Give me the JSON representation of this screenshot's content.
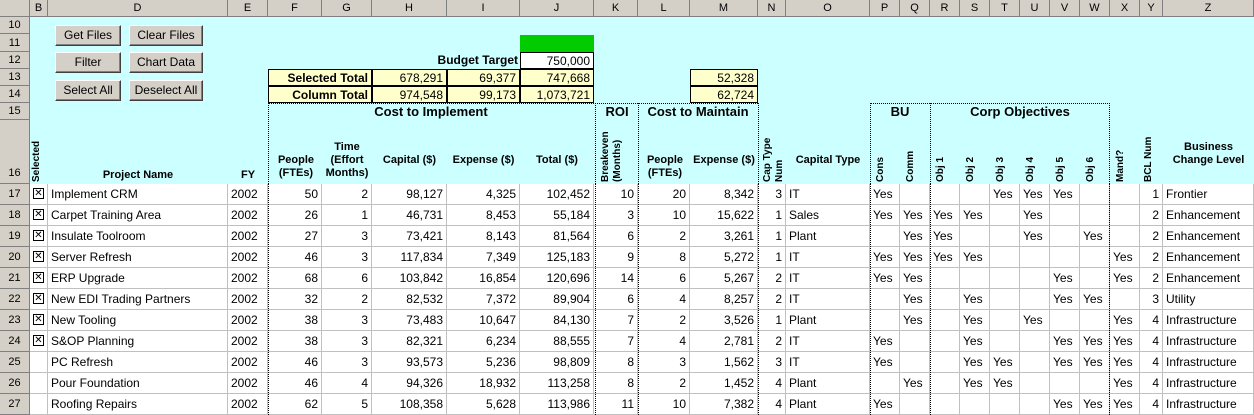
{
  "col_headers": [
    "B",
    "D",
    "E",
    "F",
    "G",
    "H",
    "I",
    "J",
    "K",
    "L",
    "M",
    "N",
    "O",
    "P",
    "Q",
    "R",
    "S",
    "T",
    "U",
    "V",
    "W",
    "X",
    "Y",
    "Z"
  ],
  "row_headers": [
    "10",
    "11",
    "12",
    "13",
    "14",
    "15",
    "16",
    "17",
    "18",
    "19",
    "20",
    "21",
    "22",
    "23",
    "24",
    "25",
    "26",
    "27"
  ],
  "buttons": {
    "get_files": "Get Files",
    "clear_files": "Clear Files",
    "filter": "Filter",
    "chart_data": "Chart Data",
    "select_all": "Select All",
    "deselect_all": "Deselect All"
  },
  "summary": {
    "budget_target_label": "Budget Target",
    "budget_target_value": "750,000",
    "selected_total_label": "Selected Total",
    "selected_total": [
      "678,291",
      "69,377",
      "747,668",
      "52,328"
    ],
    "column_total_label": "Column Total",
    "column_total": [
      "974,548",
      "99,173",
      "1,073,721",
      "62,724"
    ]
  },
  "groups": {
    "cost_to_implement": "Cost to Implement",
    "roi": "ROI",
    "cost_to_maintain": "Cost to Maintain",
    "bu": "BU",
    "corp_objectives": "Corp Objectives"
  },
  "headers": {
    "selected": "Selected",
    "project_name": "Project Name",
    "fy": "FY",
    "people": "People (FTEs)",
    "time": "Time (Effort Months)",
    "capital": "Capital ($)",
    "expense": "Expense ($)",
    "total": "Total ($)",
    "breakeven": "Breakeven (Months)",
    "m_people": "People (FTEs)",
    "m_expense": "Expense ($)",
    "cap_type_num": "Cap Type Num",
    "capital_type": "Capital Type",
    "cons": "Cons",
    "comm": "Comm",
    "obj1": "Obj 1",
    "obj2": "Obj 2",
    "obj3": "Obj 3",
    "obj4": "Obj 4",
    "obj5": "Obj 5",
    "obj6": "Obj 6",
    "mand": "Mand?",
    "bcl_num": "BCL Num",
    "bcl": "Business Change Level"
  },
  "rows": [
    {
      "row": "17",
      "sel": true,
      "name": "Implement CRM",
      "fy": "2002",
      "people": "50",
      "time": "2",
      "capital": "98,127",
      "expense": "4,325",
      "total": "102,452",
      "be": "10",
      "mp": "20",
      "me": "8,342",
      "ctn": "3",
      "ct": "IT",
      "cons": "Yes",
      "comm": "",
      "o1": "",
      "o2": "",
      "o3": "Yes",
      "o4": "Yes",
      "o5": "Yes",
      "o6": "",
      "mand": "",
      "bcln": "1",
      "bcl": "Frontier"
    },
    {
      "row": "18",
      "sel": true,
      "name": "Carpet Training Area",
      "fy": "2002",
      "people": "26",
      "time": "1",
      "capital": "46,731",
      "expense": "8,453",
      "total": "55,184",
      "be": "3",
      "mp": "10",
      "me": "15,622",
      "ctn": "1",
      "ct": "Sales",
      "cons": "Yes",
      "comm": "Yes",
      "o1": "Yes",
      "o2": "Yes",
      "o3": "",
      "o4": "Yes",
      "o5": "",
      "o6": "",
      "mand": "",
      "bcln": "2",
      "bcl": "Enhancement"
    },
    {
      "row": "19",
      "sel": true,
      "name": "Insulate Toolroom",
      "fy": "2002",
      "people": "27",
      "time": "3",
      "capital": "73,421",
      "expense": "8,143",
      "total": "81,564",
      "be": "6",
      "mp": "2",
      "me": "3,261",
      "ctn": "1",
      "ct": "Plant",
      "cons": "",
      "comm": "Yes",
      "o1": "Yes",
      "o2": "",
      "o3": "",
      "o4": "Yes",
      "o5": "",
      "o6": "Yes",
      "mand": "",
      "bcln": "2",
      "bcl": "Enhancement"
    },
    {
      "row": "20",
      "sel": true,
      "name": "Server Refresh",
      "fy": "2002",
      "people": "46",
      "time": "3",
      "capital": "117,834",
      "expense": "7,349",
      "total": "125,183",
      "be": "9",
      "mp": "8",
      "me": "5,272",
      "ctn": "1",
      "ct": "IT",
      "cons": "Yes",
      "comm": "Yes",
      "o1": "Yes",
      "o2": "Yes",
      "o3": "",
      "o4": "",
      "o5": "",
      "o6": "",
      "mand": "Yes",
      "bcln": "2",
      "bcl": "Enhancement"
    },
    {
      "row": "21",
      "sel": true,
      "name": "ERP Upgrade",
      "fy": "2002",
      "people": "68",
      "time": "6",
      "capital": "103,842",
      "expense": "16,854",
      "total": "120,696",
      "be": "14",
      "mp": "6",
      "me": "5,267",
      "ctn": "2",
      "ct": "IT",
      "cons": "Yes",
      "comm": "Yes",
      "o1": "",
      "o2": "",
      "o3": "",
      "o4": "",
      "o5": "Yes",
      "o6": "",
      "mand": "Yes",
      "bcln": "2",
      "bcl": "Enhancement"
    },
    {
      "row": "22",
      "sel": true,
      "name": "New EDI Trading Partners",
      "fy": "2002",
      "people": "32",
      "time": "2",
      "capital": "82,532",
      "expense": "7,372",
      "total": "89,904",
      "be": "6",
      "mp": "4",
      "me": "8,257",
      "ctn": "2",
      "ct": "IT",
      "cons": "",
      "comm": "Yes",
      "o1": "",
      "o2": "Yes",
      "o3": "",
      "o4": "",
      "o5": "Yes",
      "o6": "Yes",
      "mand": "",
      "bcln": "3",
      "bcl": "Utility"
    },
    {
      "row": "23",
      "sel": true,
      "name": "New Tooling",
      "fy": "2002",
      "people": "38",
      "time": "3",
      "capital": "73,483",
      "expense": "10,647",
      "total": "84,130",
      "be": "7",
      "mp": "2",
      "me": "3,526",
      "ctn": "1",
      "ct": "Plant",
      "cons": "",
      "comm": "Yes",
      "o1": "",
      "o2": "Yes",
      "o3": "",
      "o4": "Yes",
      "o5": "",
      "o6": "",
      "mand": "Yes",
      "bcln": "4",
      "bcl": "Infrastructure"
    },
    {
      "row": "24",
      "sel": true,
      "name": "S&OP Planning",
      "fy": "2002",
      "people": "38",
      "time": "3",
      "capital": "82,321",
      "expense": "6,234",
      "total": "88,555",
      "be": "7",
      "mp": "4",
      "me": "2,781",
      "ctn": "2",
      "ct": "IT",
      "cons": "Yes",
      "comm": "",
      "o1": "",
      "o2": "Yes",
      "o3": "",
      "o4": "",
      "o5": "Yes",
      "o6": "Yes",
      "mand": "Yes",
      "bcln": "4",
      "bcl": "Infrastructure"
    },
    {
      "row": "25",
      "sel": false,
      "name": "PC Refresh",
      "fy": "2002",
      "people": "46",
      "time": "3",
      "capital": "93,573",
      "expense": "5,236",
      "total": "98,809",
      "be": "8",
      "mp": "3",
      "me": "1,562",
      "ctn": "3",
      "ct": "IT",
      "cons": "Yes",
      "comm": "",
      "o1": "",
      "o2": "Yes",
      "o3": "Yes",
      "o4": "",
      "o5": "Yes",
      "o6": "Yes",
      "mand": "Yes",
      "bcln": "4",
      "bcl": "Infrastructure"
    },
    {
      "row": "26",
      "sel": false,
      "name": "Pour Foundation",
      "fy": "2002",
      "people": "46",
      "time": "4",
      "capital": "94,326",
      "expense": "18,932",
      "total": "113,258",
      "be": "8",
      "mp": "2",
      "me": "1,452",
      "ctn": "4",
      "ct": "Plant",
      "cons": "",
      "comm": "Yes",
      "o1": "",
      "o2": "Yes",
      "o3": "Yes",
      "o4": "",
      "o5": "",
      "o6": "",
      "mand": "Yes",
      "bcln": "4",
      "bcl": "Infrastructure"
    },
    {
      "row": "27",
      "sel": false,
      "name": "Roofing Repairs",
      "fy": "2002",
      "people": "62",
      "time": "5",
      "capital": "108,358",
      "expense": "5,628",
      "total": "113,986",
      "be": "11",
      "mp": "10",
      "me": "7,382",
      "ctn": "4",
      "ct": "Plant",
      "cons": "Yes",
      "comm": "",
      "o1": "",
      "o2": "",
      "o3": "",
      "o4": "",
      "o5": "Yes",
      "o6": "Yes",
      "mand": "Yes",
      "bcln": "4",
      "bcl": "Infrastructure"
    }
  ],
  "colors": {
    "header_bg": "#ccffff",
    "total_bg": "#ffffcc",
    "budget_bar": "#00cc00",
    "chrome": "#d4d0c8"
  }
}
